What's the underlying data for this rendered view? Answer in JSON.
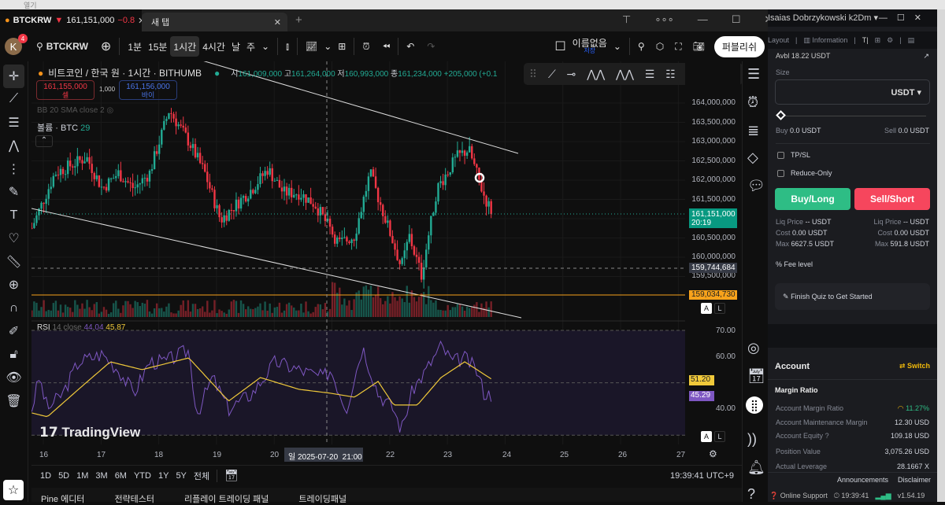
{
  "browser": {
    "tab_label": "열기"
  },
  "window": {
    "tabs": [
      {
        "label": "BTCKRW",
        "price": "161,151,000",
        "change": "−0.8"
      },
      {
        "label": "새 탭"
      }
    ],
    "new_tab": "+",
    "controls": [
      "—",
      "☐",
      "✕"
    ]
  },
  "user": {
    "name": "Isaias Dobrzykowski k2Dm ▾"
  },
  "toolbar": {
    "avatar": "K",
    "badge": "4",
    "symbol": "BTCKRW",
    "intervals": [
      "1분",
      "15분",
      "1시간",
      "4시간",
      "날",
      "주"
    ],
    "active_interval": "1시간",
    "layout_name": "이름없음",
    "layout_sub": "저장",
    "publish": "퍼블리쉬"
  },
  "chart": {
    "title": "비트코인 / 한국 원 · 1시간 · BITHUMB",
    "ohlc": {
      "o_label": "시",
      "o": "161,009,000",
      "h_label": "고",
      "h": "161,264,000",
      "l_label": "저",
      "l": "160,993,000",
      "c_label": "종",
      "c": "161,234,000",
      "change": "+205,000 (+0.1"
    },
    "sell": {
      "price": "161,155,000",
      "label": "셀"
    },
    "spread": "1,000",
    "buy": {
      "price": "161,156,000",
      "label": "바이"
    },
    "bb": "BB 20 SMA close 2",
    "volume": {
      "label": "볼륨 · BTC",
      "value": "29"
    },
    "price_axis": [
      "164,000,000",
      "163,500,000",
      "163,000,000",
      "162,500,000",
      "162,000,000",
      "161,500,000",
      "160,500,000",
      "160,000,000",
      "159,500,000"
    ],
    "last_price": "161,151,000",
    "countdown": "20:19",
    "crosshair_price": "159,744,684",
    "hline_price": "159,034,730",
    "scale_a": "A",
    "scale_l": "L",
    "rsi": {
      "label": "RSI",
      "params": "14 close",
      "v1": "44.04",
      "v2": "45.87",
      "axis": [
        "70.00",
        "60.00",
        "40.00"
      ],
      "ma_value": "51.20",
      "rsi_value": "45.29"
    },
    "time_axis": [
      "16",
      "17",
      "18",
      "19",
      "20",
      "22",
      "23",
      "24",
      "25",
      "26",
      "27"
    ],
    "crosshair_time": "일 2025-07-20  21:00",
    "watermark": "TradingView"
  },
  "ranges": [
    "1D",
    "5D",
    "1M",
    "3M",
    "6M",
    "YTD",
    "1Y",
    "5Y",
    "전체"
  ],
  "clock": "19:39:41 UTC+9",
  "bottom_tabs": [
    "Pine 에디터",
    "전략테스터",
    "리플레이 트레이딩 패널",
    "트레이딩패널"
  ],
  "panel": {
    "nav": {
      "layout": "Layout",
      "information": "Information"
    },
    "avbl": "Avbl 18.22 USDT",
    "size_label": "Size",
    "size_unit": "USDT ▾",
    "buy_amt": {
      "label": "Buy",
      "value": "0.0 USDT"
    },
    "sell_amt": {
      "label": "Sell",
      "value": "0.0 USDT"
    },
    "tpsl": "TP/SL",
    "reduce_only": "Reduce-Only",
    "buy_long": "Buy/Long",
    "sell_short": "Sell/Short",
    "left_stats": [
      {
        "k": "Liq Price",
        "v": "-- USDT"
      },
      {
        "k": "Cost",
        "v": "0.00 USDT"
      },
      {
        "k": "Max",
        "v": "6627.5 USDT"
      }
    ],
    "right_stats": [
      {
        "k": "Liq Price",
        "v": "-- USDT"
      },
      {
        "k": "Cost",
        "v": "0.00 USDT"
      },
      {
        "k": "Max",
        "v": "591.8 USDT"
      }
    ],
    "fee_level": "Fee level",
    "quiz": "Finish Quiz to Get Started",
    "account": "Account",
    "switch": "Switch",
    "margin_ratio": "Margin Ratio",
    "rows": [
      {
        "k": "Account Margin Ratio",
        "v": "11.27%"
      },
      {
        "k": "Account Maintenance Margin",
        "v": "12.30 USD"
      },
      {
        "k": "Account Equity",
        "v": "109.18 USD"
      },
      {
        "k": "Position Value",
        "v": "3,075.26 USD"
      },
      {
        "k": "Actual Leverage",
        "v": "28.1667 X"
      }
    ],
    "announcements": "Announcements",
    "disclaimer": "Disclaimer",
    "support": "Online Support",
    "time": "19:39:41",
    "version": "v1.54.19"
  },
  "colors": {
    "up": "#22ab94",
    "down": "#f23645",
    "rsi": "#7e57c2",
    "rsi_ma": "#f0c93a",
    "hline": "#f7a21b",
    "buy": "#2ebd85",
    "sell": "#f6465d"
  },
  "chart_data": {
    "type": "candlestick",
    "interval": "1h",
    "symbol": "BTCKRW",
    "ylim": [
      159300000,
      164300000
    ],
    "xlim_days": [
      15.8,
      27.2
    ],
    "close_path": [
      [
        15.8,
        160.76
      ],
      [
        16.2,
        162.18
      ],
      [
        16.75,
        162.59
      ],
      [
        17.02,
        161.78
      ],
      [
        17.3,
        162.18
      ],
      [
        17.57,
        161.78
      ],
      [
        17.84,
        162.18
      ],
      [
        18.18,
        163.82
      ],
      [
        18.52,
        163.0
      ],
      [
        18.8,
        162.18
      ],
      [
        19.07,
        160.96
      ],
      [
        19.34,
        161.37
      ],
      [
        19.62,
        161.78
      ],
      [
        19.89,
        162.29
      ],
      [
        20.16,
        161.67
      ],
      [
        20.43,
        161.67
      ],
      [
        20.71,
        161.37
      ],
      [
        21.12,
        160.35
      ],
      [
        21.39,
        160.55
      ],
      [
        21.66,
        162.18
      ],
      [
        22.07,
        160.35
      ],
      [
        22.2,
        159.73
      ],
      [
        22.34,
        160.55
      ],
      [
        22.55,
        159.53
      ],
      [
        22.82,
        161.78
      ],
      [
        23.16,
        162.59
      ],
      [
        23.37,
        162.8
      ],
      [
        23.64,
        161.57
      ],
      [
        23.78,
        161.151
      ]
    ],
    "price_unit": "million KRW",
    "rsi_path": [
      [
        15.8,
        40
      ],
      [
        15.93,
        52
      ],
      [
        16.07,
        40
      ],
      [
        16.34,
        46
      ],
      [
        16.61,
        58
      ],
      [
        17.02,
        61
      ],
      [
        17.3,
        55
      ],
      [
        17.57,
        46
      ],
      [
        17.84,
        58
      ],
      [
        18.11,
        58
      ],
      [
        18.52,
        62.5
      ],
      [
        18.66,
        38
      ],
      [
        18.93,
        52
      ],
      [
        19.21,
        40
      ],
      [
        19.62,
        46
      ],
      [
        20.02,
        58
      ],
      [
        20.43,
        55
      ],
      [
        20.84,
        52
      ],
      [
        20.98,
        55
      ],
      [
        21.25,
        40
      ],
      [
        21.53,
        64
      ],
      [
        21.8,
        46
      ],
      [
        22.07,
        40
      ],
      [
        22.2,
        32
      ],
      [
        22.41,
        48
      ],
      [
        22.61,
        54
      ],
      [
        22.89,
        64
      ],
      [
        23.09,
        58
      ],
      [
        23.3,
        59.5
      ],
      [
        23.5,
        55
      ],
      [
        23.64,
        46
      ],
      [
        23.78,
        45.29
      ]
    ],
    "rsi_ma_path": [
      [
        15.8,
        38.5
      ],
      [
        16.07,
        37
      ],
      [
        16.61,
        47.5
      ],
      [
        17.16,
        58
      ],
      [
        17.71,
        55
      ],
      [
        18.52,
        59.5
      ],
      [
        19.21,
        43
      ],
      [
        19.76,
        52
      ],
      [
        20.43,
        47.5
      ],
      [
        20.98,
        46
      ],
      [
        21.39,
        44.5
      ],
      [
        21.8,
        50.5
      ],
      [
        22.07,
        41.5
      ],
      [
        22.48,
        41.5
      ],
      [
        22.89,
        52
      ],
      [
        23.3,
        58
      ],
      [
        23.78,
        51.2
      ]
    ]
  }
}
